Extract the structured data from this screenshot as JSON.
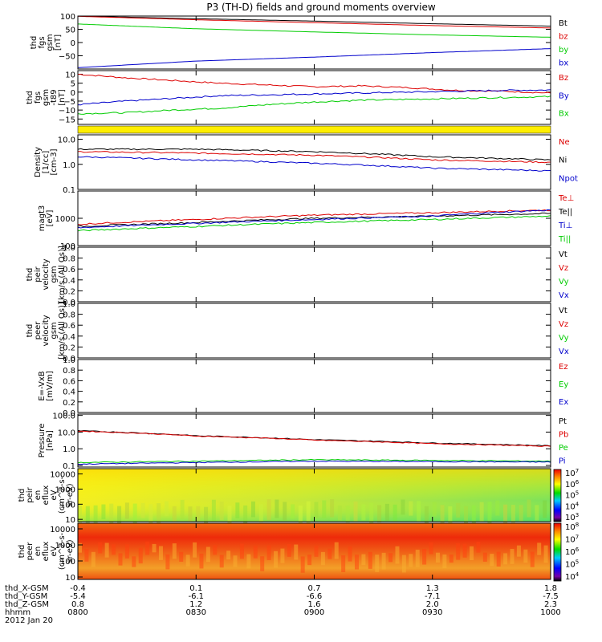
{
  "title": "P3 (TH-D) fields and ground moments overview",
  "colors": {
    "black": "#000000",
    "red": "#dd0000",
    "green": "#00cc00",
    "blue": "#0000cc",
    "yellow": "#ffee00"
  },
  "colorbar1": {
    "labels": [
      "10^7",
      "10^6",
      "10^5",
      "10^4",
      "10^3"
    ]
  },
  "colorbar2": {
    "labels": [
      "10^8",
      "10^7",
      "10^6",
      "10^5",
      "10^4"
    ]
  },
  "chart_data": [
    {
      "type": "line",
      "ylabel": [
        "thd",
        "fgs",
        "gsm",
        "[nT]"
      ],
      "ylim": [
        -100,
        100
      ],
      "yticks": [
        "100",
        "50",
        "0",
        "−50"
      ],
      "series": [
        {
          "name": "Bt",
          "color": "black",
          "x": [
            0,
            0.25,
            0.5,
            0.75,
            1
          ],
          "y": [
            100,
            90,
            81,
            71,
            62
          ]
        },
        {
          "name": "bz",
          "color": "red",
          "x": [
            0,
            0.25,
            0.5,
            0.75,
            1
          ],
          "y": [
            99,
            86,
            75,
            64,
            55
          ]
        },
        {
          "name": "by",
          "color": "green",
          "x": [
            0,
            0.25,
            0.5,
            0.75,
            1
          ],
          "y": [
            70,
            52,
            40,
            29,
            20
          ]
        },
        {
          "name": "bx",
          "color": "blue",
          "x": [
            0,
            0.25,
            0.5,
            0.75,
            1
          ],
          "y": [
            -95,
            -70,
            -55,
            -38,
            -23
          ]
        }
      ]
    },
    {
      "type": "line",
      "ylabel": [
        "thd",
        "fgs",
        "gsm",
        "-t89",
        "[nT]"
      ],
      "ylim": [
        -18,
        12
      ],
      "yticks": [
        "10",
        "5",
        "0",
        "−5",
        "−10",
        "−15"
      ],
      "series": [
        {
          "name": "Bz",
          "color": "red",
          "x": [
            0,
            0.1,
            0.2,
            0.3,
            0.4,
            0.5,
            0.6,
            0.7,
            0.8,
            0.9,
            1
          ],
          "y": [
            10,
            8,
            6.5,
            5,
            4,
            3,
            3.5,
            2.5,
            1,
            0.5,
            -0.5
          ]
        },
        {
          "name": "By",
          "color": "blue",
          "x": [
            0,
            0.1,
            0.2,
            0.3,
            0.4,
            0.5,
            0.6,
            0.7,
            0.8,
            0.9,
            1
          ],
          "y": [
            -7,
            -5,
            -3.5,
            -2,
            -1.5,
            -1,
            -0.5,
            0,
            0.5,
            1,
            1.2
          ]
        },
        {
          "name": "Bx",
          "color": "green",
          "x": [
            0,
            0.1,
            0.2,
            0.3,
            0.4,
            0.5,
            0.6,
            0.7,
            0.8,
            0.9,
            1
          ],
          "y": [
            -12,
            -11.5,
            -10,
            -9,
            -7,
            -5.5,
            -4.5,
            -4,
            -3.5,
            -3,
            -2.5
          ]
        }
      ]
    },
    {
      "type": "line",
      "log": true,
      "ylabel": [
        "Density",
        "[1/cc]",
        "[cm-3]"
      ],
      "ylim": [
        0.1,
        15
      ],
      "yticks": [
        "10.0",
        "1.0",
        "0.1"
      ],
      "series": [
        {
          "name": "Ne",
          "color": "red",
          "x": [
            0,
            0.25,
            0.5,
            0.75,
            1
          ],
          "y": [
            3.2,
            2.8,
            2.3,
            1.5,
            1.2
          ]
        },
        {
          "name": "Ni",
          "color": "black",
          "x": [
            0,
            0.25,
            0.5,
            0.75,
            1
          ],
          "y": [
            4.0,
            4.0,
            3.2,
            2.0,
            1.5
          ]
        },
        {
          "name": "Npot",
          "color": "blue",
          "x": [
            0,
            0.25,
            0.5,
            0.75,
            1
          ],
          "y": [
            2.0,
            1.5,
            1.1,
            0.7,
            0.55
          ]
        }
      ]
    },
    {
      "type": "line",
      "log": true,
      "ylabel": [
        "magt3",
        "[eV]"
      ],
      "ylim": [
        100,
        10000
      ],
      "yticks": [
        "1000",
        "100"
      ],
      "series": [
        {
          "name": "Te⊥",
          "color": "red",
          "x": [
            0,
            0.25,
            0.5,
            0.75,
            1
          ],
          "y": [
            600,
            900,
            1300,
            1600,
            2000
          ]
        },
        {
          "name": "Te||",
          "color": "black",
          "x": [
            0,
            0.25,
            0.5,
            0.75,
            1
          ],
          "y": [
            500,
            700,
            1000,
            1200,
            1500
          ]
        },
        {
          "name": "Ti⊥",
          "color": "blue",
          "x": [
            0,
            0.25,
            0.5,
            0.75,
            1
          ],
          "y": [
            450,
            650,
            900,
            1200,
            2000
          ]
        },
        {
          "name": "Ti||",
          "color": "green",
          "x": [
            0,
            0.25,
            0.5,
            0.75,
            1
          ],
          "y": [
            350,
            500,
            700,
            900,
            1200
          ]
        }
      ]
    },
    {
      "type": "line",
      "ylabel": [
        "thd",
        "peir",
        "velocity",
        "gsm",
        "[km/s (All Qs)]"
      ],
      "ylim": [
        0,
        1
      ],
      "yticks": [
        "1.0",
        "0.8",
        "0.6",
        "0.4",
        "0.2",
        "0.0"
      ],
      "series": [
        {
          "name": "Vt",
          "color": "black",
          "values": []
        },
        {
          "name": "Vz",
          "color": "red",
          "values": []
        },
        {
          "name": "Vy",
          "color": "green",
          "values": []
        },
        {
          "name": "Vx",
          "color": "blue",
          "values": []
        }
      ]
    },
    {
      "type": "line",
      "ylabel": [
        "thd",
        "peer",
        "velocity",
        "gsm",
        "[km/s (All Qs)]"
      ],
      "ylim": [
        0,
        1
      ],
      "yticks": [
        "1.0",
        "0.8",
        "0.6",
        "0.4",
        "0.2",
        "0.0"
      ],
      "series": [
        {
          "name": "Vt",
          "color": "black",
          "values": []
        },
        {
          "name": "Vz",
          "color": "red",
          "values": []
        },
        {
          "name": "Vy",
          "color": "green",
          "values": []
        },
        {
          "name": "Vx",
          "color": "blue",
          "values": []
        }
      ]
    },
    {
      "type": "line",
      "ylabel": [
        "E=-VxB",
        "[mV/m]"
      ],
      "ylim": [
        0,
        1
      ],
      "yticks": [
        "1.0",
        "0.8",
        "0.6",
        "0.4",
        "0.2",
        "0.0"
      ],
      "series": [
        {
          "name": "Ez",
          "color": "red",
          "values": []
        },
        {
          "name": "Ey",
          "color": "green",
          "values": []
        },
        {
          "name": "Ex",
          "color": "blue",
          "values": []
        }
      ]
    },
    {
      "type": "line",
      "log": true,
      "ylabel": [
        "Pressure",
        "[nPa]"
      ],
      "ylim": [
        0.08,
        120
      ],
      "yticks": [
        "100.0",
        "10.0",
        "1.0",
        "0.1"
      ],
      "series": [
        {
          "name": "Pt",
          "color": "black",
          "x": [
            0,
            0.25,
            0.5,
            0.75,
            1
          ],
          "y": [
            12,
            6,
            3.5,
            2.2,
            1.5
          ]
        },
        {
          "name": "Pb",
          "color": "red",
          "x": [
            0,
            0.25,
            0.5,
            0.75,
            1
          ],
          "y": [
            11.5,
            5.8,
            3.3,
            2.0,
            1.4
          ]
        },
        {
          "name": "Pe",
          "color": "green",
          "x": [
            0,
            0.25,
            0.5,
            0.75,
            1
          ],
          "y": [
            0.15,
            0.18,
            0.22,
            0.2,
            0.18
          ]
        },
        {
          "name": "Pi",
          "color": "blue",
          "x": [
            0,
            0.25,
            0.5,
            0.75,
            1
          ],
          "y": [
            0.12,
            0.15,
            0.18,
            0.17,
            0.16
          ]
        }
      ]
    },
    {
      "type": "heatmap",
      "ylabel": [
        "thd",
        "peir",
        "en",
        "eflux",
        "eV",
        "(cm^2-s-",
        "sr-eV)"
      ],
      "yticks": [
        "10000",
        "1000",
        "100",
        "10"
      ]
    },
    {
      "type": "heatmap",
      "ylabel": [
        "thd",
        "peer",
        "en",
        "eflux",
        "eV",
        "(cm^2-s-",
        "sr-eV)"
      ],
      "yticks": [
        "10000",
        "1000",
        "100",
        "10"
      ]
    }
  ],
  "xaxis": {
    "rows": [
      {
        "label": "thd_X-GSM",
        "values": [
          "-0.4",
          "0.1",
          "0.7",
          "1.3",
          "1.8"
        ]
      },
      {
        "label": "thd_Y-GSM",
        "values": [
          "-5.4",
          "-6.1",
          "-6.6",
          "-7.1",
          "-7.5"
        ]
      },
      {
        "label": "thd_Z-GSM",
        "values": [
          "0.8",
          "1.2",
          "1.6",
          "2.0",
          "2.3"
        ]
      },
      {
        "label": "hhmm",
        "values": [
          "0800",
          "0830",
          "0900",
          "0930",
          "1000"
        ]
      }
    ],
    "date": "2012 Jan 20"
  }
}
